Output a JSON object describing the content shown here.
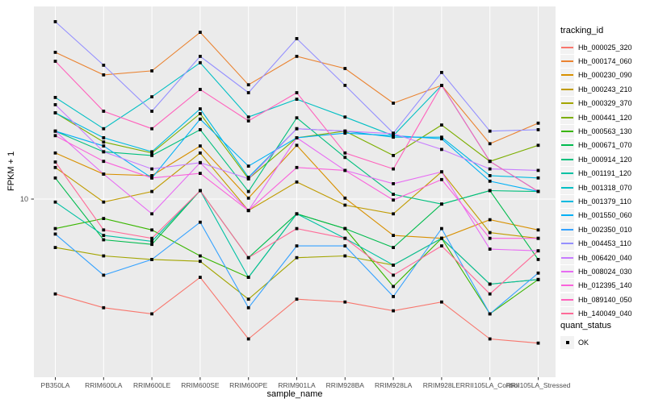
{
  "chart_data": {
    "type": "line",
    "xlabel": "sample_name",
    "ylabel": "FPKM + 1",
    "y_scale": "log10",
    "y_tick_labels": [
      "10"
    ],
    "ylim": [
      1.6,
      75
    ],
    "grid": "major",
    "panel_bg": "#EBEBEB",
    "gridline_color": "#FFFFFF",
    "marker": "black-square",
    "legend_title": "tracking_id",
    "legend_position": "right",
    "legend2_title": "quant_status",
    "legend2_items": [
      "OK"
    ],
    "categories": [
      "PB350LA",
      "RRIM600LA",
      "RRIM600LE",
      "RRIM600SE",
      "RRIM600PE",
      "RRIM901LA",
      "RRIM928BA",
      "RRIM928LA",
      "RRIM928LE",
      "RRII105LA_Control",
      "RRII105LA_Stressed"
    ],
    "series": [
      {
        "name": "Hb_000025_320",
        "color": "#F8766D",
        "values": [
          3.8,
          3.3,
          3.1,
          4.5,
          2.4,
          3.6,
          3.5,
          3.2,
          3.5,
          2.4,
          2.3
        ]
      },
      {
        "name": "Hb_000174_060",
        "color": "#EA8331",
        "values": [
          44.7,
          35.5,
          37.0,
          54.8,
          32.1,
          42.9,
          37.9,
          26.6,
          31.9,
          17.6,
          21.7
        ]
      },
      {
        "name": "Hb_000230_090",
        "color": "#D89000",
        "values": [
          16.0,
          12.9,
          12.7,
          17.2,
          10.1,
          17.3,
          10.1,
          6.9,
          6.7,
          8.1,
          7.3
        ]
      },
      {
        "name": "Hb_000243_210",
        "color": "#C09B00",
        "values": [
          13.8,
          9.7,
          10.8,
          16.0,
          8.9,
          11.9,
          9.4,
          8.6,
          13.2,
          7.1,
          6.7
        ]
      },
      {
        "name": "Hb_000329_370",
        "color": "#A3A500",
        "values": [
          6.1,
          5.6,
          5.4,
          5.3,
          3.6,
          5.5,
          5.6,
          5.1,
          6.7,
          4.2,
          4.4
        ]
      },
      {
        "name": "Hb_000441_120",
        "color": "#7CAE00",
        "values": [
          24.1,
          17.9,
          16.0,
          23.9,
          12.3,
          18.7,
          20.0,
          15.6,
          21.3,
          14.7,
          17.3
        ]
      },
      {
        "name": "Hb_000563_130",
        "color": "#39B600",
        "values": [
          7.4,
          8.2,
          7.3,
          5.6,
          4.5,
          8.6,
          7.4,
          4.1,
          6.7,
          3.1,
          4.4
        ]
      },
      {
        "name": "Hb_000671_070",
        "color": "#00BB4E",
        "values": [
          12.4,
          6.6,
          6.3,
          10.9,
          5.5,
          8.6,
          7.4,
          6.1,
          9.5,
          10.9,
          5.4
        ]
      },
      {
        "name": "Hb_000914_120",
        "color": "#00BF7D",
        "values": [
          20.0,
          16.2,
          15.6,
          20.3,
          10.8,
          22.9,
          15.3,
          10.5,
          9.5,
          10.9,
          10.8
        ]
      },
      {
        "name": "Hb_001191_120",
        "color": "#00C1A3",
        "values": [
          9.7,
          6.9,
          6.5,
          10.9,
          4.5,
          8.6,
          6.7,
          5.1,
          6.7,
          4.2,
          4.4
        ]
      },
      {
        "name": "Hb_001318_070",
        "color": "#00BFC4",
        "values": [
          28.2,
          20.5,
          28.4,
          40.2,
          23.1,
          27.7,
          23.1,
          19.1,
          31.9,
          14.7,
          10.8
        ]
      },
      {
        "name": "Hb_001379_110",
        "color": "#00BAE0",
        "values": [
          24.1,
          18.7,
          16.2,
          25.1,
          12.5,
          20.5,
          20.0,
          18.8,
          18.8,
          12.7,
          12.4
        ]
      },
      {
        "name": "Hb_001550_060",
        "color": "#00B0F6",
        "values": [
          20.0,
          17.2,
          12.4,
          22.6,
          14.0,
          18.7,
          19.6,
          19.1,
          18.5,
          12.0,
          10.8
        ]
      },
      {
        "name": "Hb_002350_010",
        "color": "#35A2FF",
        "values": [
          7.0,
          4.6,
          5.4,
          7.9,
          3.3,
          6.2,
          6.2,
          3.7,
          7.4,
          3.1,
          4.7
        ]
      },
      {
        "name": "Hb_004453_110",
        "color": "#9590FF",
        "values": [
          61.1,
          39.2,
          24.5,
          42.9,
          29.6,
          51.4,
          31.9,
          19.6,
          36.4,
          20.0,
          20.3
        ]
      },
      {
        "name": "Hb_006420_040",
        "color": "#C77CFF",
        "values": [
          26.2,
          16.2,
          13.6,
          14.5,
          12.3,
          20.5,
          20.0,
          19.5,
          16.6,
          13.6,
          13.4
        ]
      },
      {
        "name": "Hb_008024_030",
        "color": "#E76BF3",
        "values": [
          20.0,
          12.9,
          8.6,
          14.5,
          8.9,
          18.7,
          13.4,
          11.7,
          13.2,
          6.0,
          5.9
        ]
      },
      {
        "name": "Hb_012395_140",
        "color": "#FA62DB",
        "values": [
          19.1,
          14.7,
          12.4,
          13.0,
          8.9,
          13.8,
          13.4,
          9.9,
          12.2,
          6.7,
          6.7
        ]
      },
      {
        "name": "Hb_089140_050",
        "color": "#FF62BC",
        "values": [
          40.8,
          24.5,
          20.5,
          30.6,
          22.2,
          29.6,
          16.0,
          13.6,
          31.9,
          14.7,
          10.8
        ]
      },
      {
        "name": "Hb_140049_040",
        "color": "#FF6A98",
        "values": [
          14.6,
          7.3,
          6.7,
          10.9,
          5.5,
          7.4,
          6.7,
          4.6,
          6.2,
          3.8,
          5.9
        ]
      }
    ]
  }
}
